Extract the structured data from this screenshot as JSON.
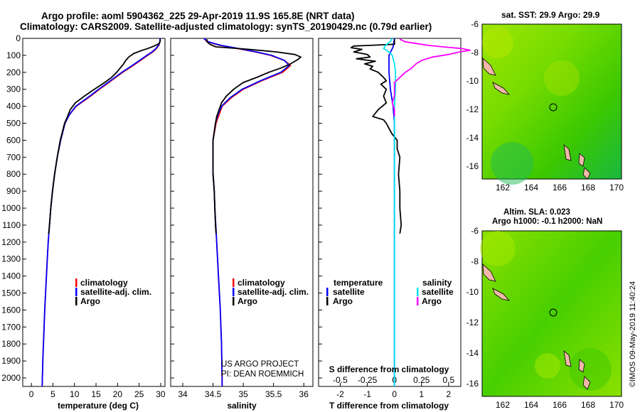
{
  "header": {
    "line1": "Argo profile: aoml 5904362_225 29-Apr-2019 11.9S 165.8E (NRT data)",
    "line2": "Climatology: CARS2009. Satellite-adjusted climatology: synTS_20190429.nc (0.79d earlier)"
  },
  "credit": "©IMOS 09-May-2019 11:40:24",
  "map_sst": {
    "title": "sat. SST: 29.9 Argo: 29.9",
    "yticks": [
      "-6",
      "-8",
      "-10",
      "-12",
      "-14",
      "-16"
    ],
    "xticks": [
      "162",
      "164",
      "166",
      "168",
      "170"
    ]
  },
  "map_sla": {
    "title1": "Altim. SLA: 0.023",
    "title2": "Argo h1000: -0.1 h2000: NaN",
    "yticks": [
      "-6",
      "-8",
      "-10",
      "-12",
      "-14",
      "-16"
    ],
    "xticks": [
      "162",
      "164",
      "166",
      "168",
      "170"
    ]
  },
  "legend_temp": {
    "items": [
      "climatology",
      "satellite-adj. clim.",
      "Argo"
    ]
  },
  "legend_sal": {
    "items": [
      "climatology",
      "satellite-adj. clim.",
      "Argo"
    ],
    "note1": "US ARGO PROJECT",
    "note2": "PI: DEAN ROEMMICH"
  },
  "legend_diff": {
    "temp_head": "temperature",
    "sal_head": "salinity",
    "temp_items": [
      "satellite",
      "Argo"
    ],
    "sal_items": [
      "satellite",
      "Argo"
    ]
  },
  "colors": {
    "climatology": "#ff0000",
    "satellite": "#0000ff",
    "argo": "#000000",
    "sal_sat": "#00e5ee",
    "sal_argo": "#ff00ff"
  },
  "chart_data": [
    {
      "type": "line",
      "panel": "temperature",
      "xlabel": "temperature (deg C)",
      "ylabel": "",
      "xlim": [
        -2,
        31
      ],
      "ylim": [
        2050,
        0
      ],
      "xticks": [
        0,
        5,
        10,
        15,
        20,
        25,
        30
      ],
      "yticks": [
        0,
        100,
        200,
        300,
        400,
        500,
        600,
        700,
        800,
        900,
        1000,
        1100,
        1200,
        1300,
        1400,
        1500,
        1600,
        1700,
        1800,
        1900,
        2000
      ],
      "series": [
        {
          "name": "climatology",
          "depth": [
            0,
            20,
            40,
            60,
            80,
            100,
            130,
            160,
            200,
            250,
            300,
            350,
            400,
            450,
            500,
            600,
            700,
            800,
            900,
            1000,
            1100,
            1200,
            1300,
            1400,
            1500,
            1600,
            1700,
            1800,
            1900,
            2000,
            2050
          ],
          "values": [
            29.9,
            29.8,
            29.6,
            29.0,
            28.2,
            27.0,
            25.3,
            23.6,
            21.2,
            18.5,
            15.8,
            13.2,
            10.4,
            8.8,
            7.8,
            6.8,
            6.0,
            5.4,
            4.9,
            4.5,
            4.2,
            3.9,
            3.7,
            3.5,
            3.3,
            3.1,
            2.95,
            2.8,
            2.65,
            2.55,
            2.5
          ]
        },
        {
          "name": "satellite-adj. clim.",
          "depth": [
            0,
            20,
            40,
            60,
            80,
            100,
            130,
            160,
            200,
            250,
            300,
            350,
            400,
            450,
            500,
            600,
            700,
            800,
            900,
            1000,
            1100,
            1200,
            1300,
            1400,
            1500,
            1600,
            1700,
            1800,
            1900,
            2000,
            2050
          ],
          "values": [
            29.9,
            29.8,
            29.5,
            28.9,
            28.0,
            26.8,
            25.1,
            23.4,
            21.0,
            18.3,
            15.6,
            13.0,
            10.3,
            8.8,
            7.8,
            6.8,
            6.0,
            5.4,
            4.9,
            4.5,
            4.2,
            3.9,
            3.7,
            3.5,
            3.3,
            3.1,
            2.95,
            2.8,
            2.65,
            2.55,
            2.5
          ]
        },
        {
          "name": "Argo",
          "depth": [
            5,
            15,
            30,
            45,
            60,
            75,
            90,
            110,
            130,
            150,
            175,
            200,
            230,
            260,
            300,
            340,
            380,
            420,
            460,
            500,
            550,
            600,
            700,
            800,
            900,
            1000,
            1100,
            1150
          ],
          "values": [
            29.9,
            29.9,
            29.7,
            28.5,
            27.0,
            25.2,
            23.7,
            22.6,
            21.9,
            21.4,
            20.6,
            19.8,
            18.6,
            17.0,
            14.6,
            12.3,
            10.2,
            9.0,
            8.4,
            7.7,
            7.2,
            6.7,
            6.0,
            5.4,
            4.9,
            4.5,
            4.2,
            4.0
          ]
        }
      ]
    },
    {
      "type": "line",
      "panel": "salinity",
      "xlabel": "salinity",
      "ylabel": "",
      "xlim": [
        33.8,
        36.15
      ],
      "ylim": [
        2050,
        0
      ],
      "xticks": [
        34,
        34.5,
        35,
        35.5,
        36
      ],
      "yticks": [
        0,
        100,
        200,
        300,
        400,
        500,
        600,
        700,
        800,
        900,
        1000,
        1100,
        1200,
        1300,
        1400,
        1500,
        1600,
        1700,
        1800,
        1900,
        2000
      ],
      "series": [
        {
          "name": "climatology",
          "depth": [
            0,
            20,
            40,
            60,
            80,
            100,
            130,
            160,
            200,
            250,
            300,
            350,
            400,
            450,
            500,
            600,
            700,
            800,
            900,
            1000,
            1200,
            1400,
            1600,
            1800,
            2000,
            2050
          ],
          "values": [
            34.35,
            34.4,
            34.6,
            34.9,
            35.2,
            35.45,
            35.68,
            35.78,
            35.65,
            35.3,
            35.0,
            34.8,
            34.65,
            34.6,
            34.55,
            34.5,
            34.5,
            34.5,
            34.52,
            34.53,
            34.56,
            34.59,
            34.62,
            34.64,
            34.65,
            34.65
          ]
        },
        {
          "name": "satellite-adj. clim.",
          "depth": [
            0,
            20,
            40,
            60,
            80,
            100,
            130,
            160,
            200,
            250,
            300,
            350,
            400,
            450,
            500,
            600,
            700,
            800,
            900,
            1000,
            1200,
            1400,
            1600,
            1800,
            2000,
            2050
          ],
          "values": [
            34.35,
            34.42,
            34.62,
            34.92,
            35.22,
            35.47,
            35.68,
            35.76,
            35.62,
            35.28,
            34.98,
            34.78,
            34.64,
            34.58,
            34.54,
            34.5,
            34.5,
            34.5,
            34.52,
            34.53,
            34.56,
            34.59,
            34.62,
            34.64,
            34.65,
            34.65
          ]
        },
        {
          "name": "Argo",
          "depth": [
            5,
            20,
            35,
            50,
            65,
            80,
            95,
            110,
            125,
            150,
            175,
            200,
            230,
            260,
            300,
            340,
            380,
            420,
            460,
            500,
            550,
            600,
            700,
            800,
            900,
            1000,
            1100,
            1150
          ],
          "values": [
            34.4,
            34.4,
            34.45,
            34.55,
            35.1,
            35.55,
            35.85,
            35.95,
            35.9,
            35.78,
            35.62,
            35.42,
            35.22,
            35.0,
            34.84,
            34.72,
            34.64,
            34.6,
            34.56,
            34.54,
            34.52,
            34.5,
            34.5,
            34.5,
            34.52,
            34.53,
            34.54,
            34.55
          ]
        }
      ]
    },
    {
      "type": "line",
      "panel": "difference",
      "xlabel": "T difference from climatology",
      "xlabel2": "S difference from climatology",
      "ylabel": "",
      "xlim": [
        -2.8,
        2.45
      ],
      "ylim": [
        2050,
        0
      ],
      "xticks": [
        -2,
        -1,
        0,
        1,
        2
      ],
      "sticks": [
        -0.5,
        -0.25,
        0,
        0.25,
        0.5
      ],
      "sticklabels": [
        "-0.5",
        "-0.25",
        "0",
        "0.25",
        "0.5"
      ],
      "yticks": [
        0,
        100,
        200,
        300,
        400,
        500,
        600,
        700,
        800,
        900,
        1000,
        1100,
        1200,
        1300,
        1400,
        1500,
        1600,
        1700,
        1800,
        1900,
        2000
      ],
      "series": [
        {
          "name": "temperature satellite",
          "depth": [
            0,
            50,
            100,
            150,
            200,
            300,
            400,
            500,
            600,
            800,
            1000,
            1200,
            1500,
            1800,
            2000,
            2050
          ],
          "values": [
            0,
            -0.05,
            -0.2,
            -0.2,
            -0.2,
            -0.15,
            -0.05,
            0,
            0,
            0,
            0,
            0,
            0,
            0,
            0,
            0
          ]
        },
        {
          "name": "temperature Argo",
          "depth": [
            5,
            20,
            35,
            45,
            55,
            65,
            80,
            95,
            110,
            120,
            135,
            150,
            165,
            180,
            200,
            230,
            250,
            270,
            300,
            340,
            380,
            420,
            460,
            480,
            500,
            530,
            560,
            600,
            650,
            700,
            800,
            900,
            1000,
            1100,
            1150
          ],
          "values": [
            0,
            0,
            0,
            -1.5,
            -1.6,
            -1.2,
            -1.5,
            -1.0,
            -0.9,
            -1.4,
            -0.7,
            -1.1,
            -0.8,
            -0.9,
            -0.6,
            -0.4,
            -0.3,
            -0.5,
            -0.3,
            -0.4,
            -0.3,
            -0.6,
            -0.8,
            -0.4,
            -0.3,
            -0.2,
            -0.1,
            0.1,
            0.1,
            0.2,
            0.15,
            0.2,
            0.2,
            0.25,
            0.2
          ]
        },
        {
          "name": "salinity satellite",
          "depth": [
            0,
            20,
            40,
            60,
            80,
            100,
            150,
            200,
            300,
            400,
            500,
            700,
            900,
            1100,
            1400,
            1700,
            2000,
            2050
          ],
          "values": [
            -0.02,
            -0.04,
            -0.08,
            -0.1,
            -0.05,
            -0.02,
            0.0,
            0.01,
            0.01,
            0.0,
            0.0,
            0.0,
            0.0,
            0.0,
            0.0,
            0.0,
            0.0,
            0.0
          ]
        },
        {
          "name": "salinity Argo",
          "depth": [
            5,
            20,
            30,
            40,
            50,
            60,
            70,
            80,
            95,
            110,
            130,
            150,
            180,
            200,
            230,
            260,
            300,
            340,
            380,
            420,
            460
          ],
          "values": [
            0.05,
            0.1,
            0.2,
            0.3,
            0.45,
            0.62,
            0.7,
            0.6,
            0.5,
            0.35,
            0.25,
            0.2,
            0.15,
            0.1,
            0.05,
            0.0,
            0.0,
            0.0,
            -0.02,
            0.0,
            0.0
          ]
        }
      ]
    }
  ]
}
